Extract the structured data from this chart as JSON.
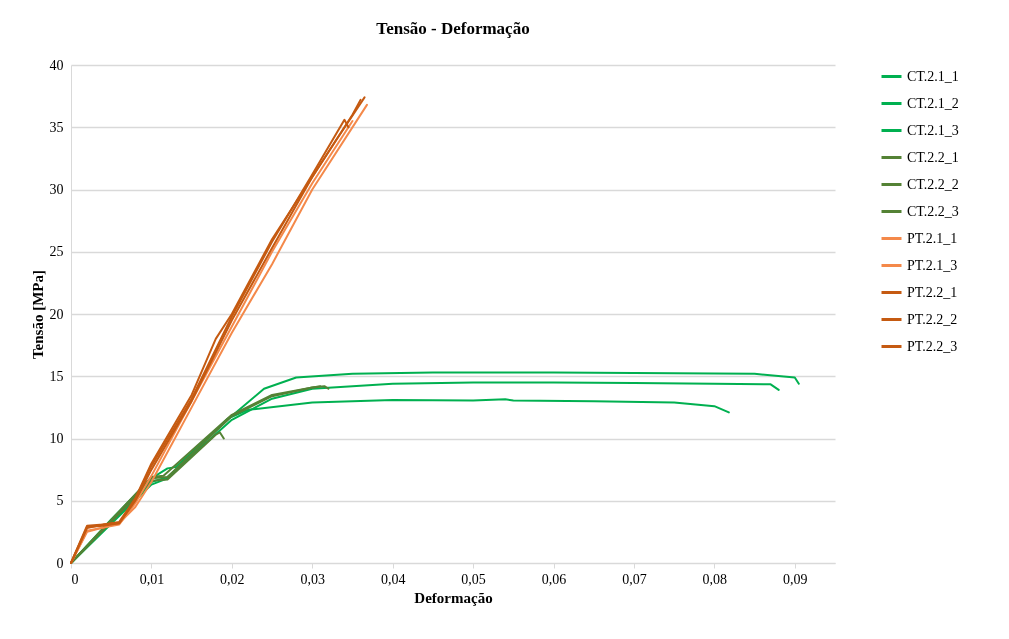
{
  "chart_data": {
    "type": "line",
    "title": "Tensão - Deformação",
    "xlabel": "Deformação",
    "ylabel": "Tensão [MPa]",
    "xlim": [
      0,
      0.095
    ],
    "xticks": [
      0,
      {
        "value": 0.01,
        "label": "0,01"
      },
      {
        "value": 0.02,
        "label": "0,02"
      },
      {
        "value": 0.03,
        "label": "0,03"
      },
      {
        "value": 0.04,
        "label": "0,04"
      },
      {
        "value": 0.05,
        "label": "0,05"
      },
      {
        "value": 0.06,
        "label": "0,06"
      },
      {
        "value": 0.07,
        "label": "0,07"
      },
      {
        "value": 0.08,
        "label": "0,08"
      },
      {
        "value": 0.09,
        "label": "0,09"
      }
    ],
    "ylim": [
      0,
      40
    ],
    "yticks": [
      0,
      5,
      10,
      15,
      20,
      25,
      30,
      35,
      40
    ],
    "grid": "y",
    "legend": "right",
    "marker": "none",
    "line_style": "solid",
    "series": [
      {
        "name": "CT.2.1_1",
        "color": "#00b050",
        "x": [
          0,
          0.005,
          0.01,
          0.012,
          0.013,
          0.02,
          0.024,
          0.028,
          0.035,
          0.045,
          0.06,
          0.075,
          0.085,
          0.09,
          0.0905
        ],
        "values": [
          0,
          3.5,
          6.8,
          7.6,
          7.7,
          11.8,
          14.0,
          14.9,
          15.2,
          15.3,
          15.3,
          15.25,
          15.2,
          14.9,
          14.4
        ]
      },
      {
        "name": "CT.2.1_2",
        "color": "#00b050",
        "x": [
          0,
          0.01,
          0.012,
          0.02,
          0.025,
          0.03,
          0.04,
          0.05,
          0.06,
          0.07,
          0.08,
          0.087,
          0.088
        ],
        "values": [
          0,
          6.5,
          6.9,
          11.5,
          13.2,
          14.0,
          14.4,
          14.5,
          14.5,
          14.45,
          14.4,
          14.35,
          13.9
        ]
      },
      {
        "name": "CT.2.1_3",
        "color": "#00b050",
        "x": [
          0,
          0.01,
          0.012,
          0.0195,
          0.022,
          0.03,
          0.04,
          0.05,
          0.054,
          0.055,
          0.065,
          0.075,
          0.08,
          0.0818
        ],
        "values": [
          0,
          6.3,
          6.8,
          11.6,
          12.3,
          12.9,
          13.1,
          13.05,
          13.15,
          13.05,
          13.0,
          12.9,
          12.6,
          12.1
        ]
      },
      {
        "name": "CT.2.2_1",
        "color": "#548235",
        "x": [
          0,
          0.01,
          0.012,
          0.018,
          0.0185,
          0.019
        ],
        "values": [
          0,
          6.6,
          6.7,
          10.3,
          10.5,
          10.0
        ]
      },
      {
        "name": "CT.2.2_2",
        "color": "#548235",
        "x": [
          0,
          0.01,
          0.012,
          0.02,
          0.025,
          0.03,
          0.0315,
          0.032
        ],
        "values": [
          0,
          6.8,
          6.9,
          11.8,
          13.4,
          14.1,
          14.2,
          14.0
        ]
      },
      {
        "name": "CT.2.2_3",
        "color": "#548235",
        "x": [
          0,
          0.01,
          0.0115,
          0.02,
          0.025,
          0.03,
          0.031
        ],
        "values": [
          0,
          6.9,
          7.0,
          11.9,
          13.5,
          14.1,
          14.2
        ]
      },
      {
        "name": "PT.2.1_1",
        "color": "#f4894a",
        "x": [
          0,
          0.002,
          0.006,
          0.008,
          0.01,
          0.015,
          0.02,
          0.025,
          0.03,
          0.0368
        ],
        "values": [
          0,
          2.5,
          3.2,
          4.5,
          6.5,
          12.5,
          18.5,
          24.0,
          30.0,
          36.8
        ]
      },
      {
        "name": "PT.2.1_3",
        "color": "#f4894a",
        "x": [
          0,
          0.002,
          0.006,
          0.008,
          0.01,
          0.015,
          0.02,
          0.025,
          0.03,
          0.035
        ],
        "values": [
          0,
          2.6,
          3.1,
          4.8,
          7.0,
          13.0,
          19.0,
          25.0,
          30.5,
          35.5
        ]
      },
      {
        "name": "PT.2.2_1",
        "color": "#c55a11",
        "x": [
          0,
          0.002,
          0.004,
          0.006,
          0.008,
          0.01,
          0.015,
          0.02,
          0.025,
          0.03,
          0.035,
          0.036
        ],
        "values": [
          0,
          2.8,
          3.1,
          3.2,
          5.0,
          7.5,
          13.0,
          19.5,
          25.3,
          31.0,
          36.0,
          37.2
        ]
      },
      {
        "name": "PT.2.2_2",
        "color": "#c55a11",
        "x": [
          0,
          0.002,
          0.004,
          0.006,
          0.008,
          0.01,
          0.015,
          0.018,
          0.02,
          0.025,
          0.03,
          0.033,
          0.0365
        ],
        "values": [
          0,
          3.0,
          3.1,
          3.3,
          5.2,
          8.0,
          13.5,
          18.0,
          20.0,
          26.0,
          31.0,
          34.0,
          37.4
        ]
      },
      {
        "name": "PT.2.2_3",
        "color": "#c55a11",
        "x": [
          0,
          0.002,
          0.004,
          0.006,
          0.008,
          0.01,
          0.015,
          0.02,
          0.025,
          0.03,
          0.034,
          0.0345
        ],
        "values": [
          0,
          2.9,
          3.0,
          3.2,
          5.1,
          7.8,
          13.2,
          19.8,
          25.8,
          31.2,
          35.6,
          35.0
        ]
      }
    ]
  }
}
